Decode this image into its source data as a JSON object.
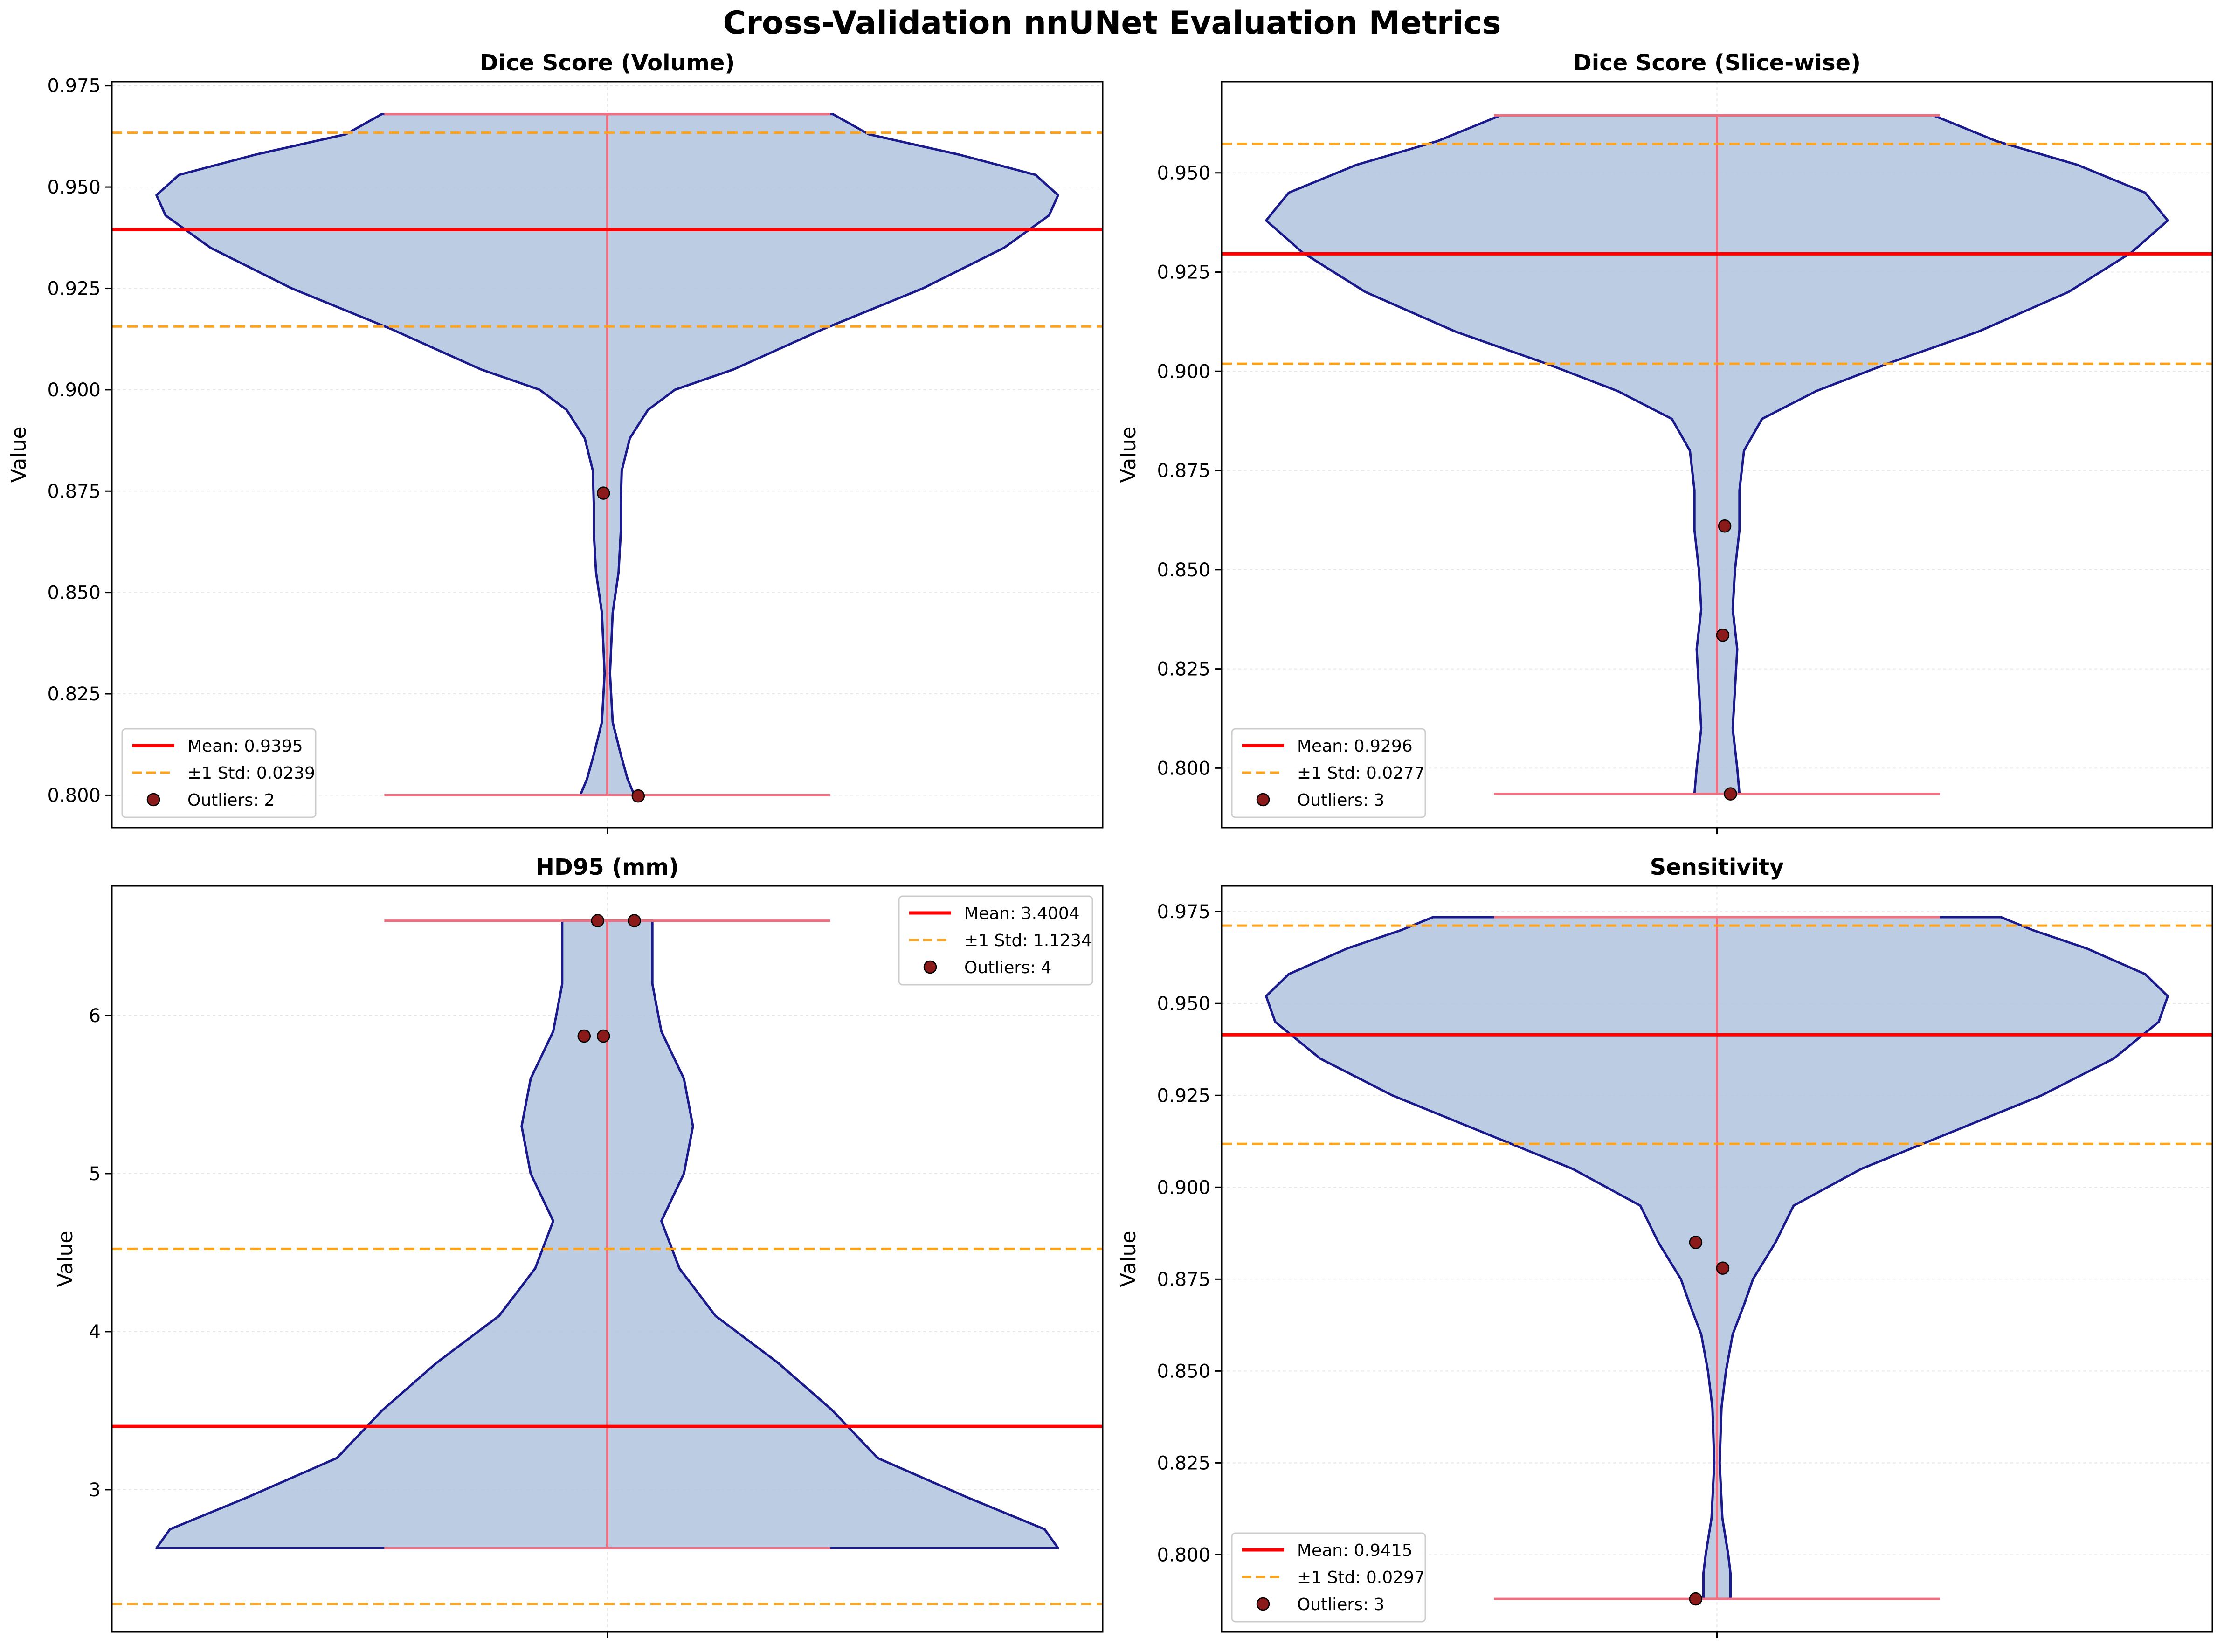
{
  "figure_title": "Cross-Validation nnUNet Evaluation Metrics",
  "colors": {
    "violin_fill": "#b0c4de",
    "violin_edge": "#1a1a8c",
    "median_line": "#f07080",
    "mean_line": "#ff0000",
    "std_line": "#ffa31a",
    "outlier_fill": "#8b1a1a",
    "grid": "#e6e6e6"
  },
  "chart_data": [
    {
      "type": "violin",
      "title": "Dice Score (Volume)",
      "ylabel": "Value",
      "ylim": [
        0.792,
        0.976
      ],
      "yticks": [
        0.8,
        0.825,
        0.85,
        0.875,
        0.9,
        0.925,
        0.95,
        0.975
      ],
      "ytick_labels": [
        "0.800",
        "0.825",
        "0.850",
        "0.875",
        "0.900",
        "0.925",
        "0.950",
        "0.975"
      ],
      "range": [
        0.8,
        0.968
      ],
      "violin_profile": [
        [
          0.8,
          0.06
        ],
        [
          0.804,
          0.045
        ],
        [
          0.81,
          0.03
        ],
        [
          0.818,
          0.012
        ],
        [
          0.83,
          0.006
        ],
        [
          0.845,
          0.012
        ],
        [
          0.855,
          0.025
        ],
        [
          0.865,
          0.03
        ],
        [
          0.872,
          0.03
        ],
        [
          0.88,
          0.032
        ],
        [
          0.888,
          0.05
        ],
        [
          0.895,
          0.09
        ],
        [
          0.9,
          0.15
        ],
        [
          0.905,
          0.28
        ],
        [
          0.915,
          0.48
        ],
        [
          0.925,
          0.7
        ],
        [
          0.935,
          0.88
        ],
        [
          0.943,
          0.98
        ],
        [
          0.948,
          1.0
        ],
        [
          0.953,
          0.95
        ],
        [
          0.958,
          0.78
        ],
        [
          0.963,
          0.58
        ],
        [
          0.968,
          0.5
        ]
      ],
      "mean": 0.9395,
      "std_band": [
        0.9156,
        0.9634
      ],
      "outliers": [
        {
          "x": -0.01,
          "y": 0.8745
        },
        {
          "x": 0.08,
          "y": 0.7998
        }
      ],
      "legend": {
        "placement": "lower left",
        "mean_label": "Mean: 0.9395",
        "std_label": "±1 Std: 0.0239",
        "outlier_label": "Outliers: 2"
      }
    },
    {
      "type": "violin",
      "title": "Dice Score (Slice-wise)",
      "ylabel": "Value",
      "ylim": [
        0.785,
        0.973
      ],
      "yticks": [
        0.8,
        0.825,
        0.85,
        0.875,
        0.9,
        0.925,
        0.95
      ],
      "ytick_labels": [
        "0.800",
        "0.825",
        "0.850",
        "0.875",
        "0.900",
        "0.925",
        "0.950"
      ],
      "range": [
        0.7935,
        0.9645
      ],
      "violin_profile": [
        [
          0.7935,
          0.05
        ],
        [
          0.8,
          0.045
        ],
        [
          0.81,
          0.035
        ],
        [
          0.82,
          0.04
        ],
        [
          0.83,
          0.045
        ],
        [
          0.84,
          0.035
        ],
        [
          0.85,
          0.04
        ],
        [
          0.86,
          0.05
        ],
        [
          0.87,
          0.05
        ],
        [
          0.88,
          0.06
        ],
        [
          0.888,
          0.1
        ],
        [
          0.895,
          0.22
        ],
        [
          0.902,
          0.38
        ],
        [
          0.91,
          0.58
        ],
        [
          0.92,
          0.78
        ],
        [
          0.93,
          0.92
        ],
        [
          0.938,
          1.0
        ],
        [
          0.945,
          0.95
        ],
        [
          0.952,
          0.8
        ],
        [
          0.958,
          0.62
        ],
        [
          0.9645,
          0.48
        ]
      ],
      "mean": 0.9296,
      "std_band": [
        0.9019,
        0.9573
      ],
      "outliers": [
        {
          "x": 0.02,
          "y": 0.861
        },
        {
          "x": 0.015,
          "y": 0.8335
        },
        {
          "x": 0.035,
          "y": 0.7935
        }
      ],
      "legend": {
        "placement": "lower left",
        "mean_label": "Mean: 0.9296",
        "std_label": "±1 Std: 0.0277",
        "outlier_label": "Outliers: 3"
      }
    },
    {
      "type": "violin",
      "title": "HD95 (mm)",
      "ylabel": "Value",
      "ylim": [
        2.1,
        6.82
      ],
      "yticks": [
        3,
        4,
        5,
        6
      ],
      "ytick_labels": [
        "3",
        "4",
        "5",
        "6"
      ],
      "range": [
        2.63,
        6.6
      ],
      "violin_profile": [
        [
          2.63,
          1.0
        ],
        [
          2.75,
          0.97
        ],
        [
          2.95,
          0.8
        ],
        [
          3.2,
          0.6
        ],
        [
          3.5,
          0.5
        ],
        [
          3.8,
          0.38
        ],
        [
          4.1,
          0.24
        ],
        [
          4.4,
          0.16
        ],
        [
          4.7,
          0.12
        ],
        [
          5.0,
          0.17
        ],
        [
          5.3,
          0.19
        ],
        [
          5.6,
          0.17
        ],
        [
          5.9,
          0.12
        ],
        [
          6.2,
          0.1
        ],
        [
          6.6,
          0.1
        ]
      ],
      "mean": 3.4004,
      "std_band": [
        2.277,
        4.5238
      ],
      "outliers": [
        {
          "x": -0.06,
          "y": 5.87
        },
        {
          "x": -0.01,
          "y": 5.87
        },
        {
          "x": -0.025,
          "y": 6.6
        },
        {
          "x": 0.07,
          "y": 6.6
        }
      ],
      "legend": {
        "placement": "upper right",
        "mean_label": "Mean: 3.4004",
        "std_label": "±1 Std: 1.1234",
        "outlier_label": "Outliers: 4"
      }
    },
    {
      "type": "violin",
      "title": "Sensitivity",
      "ylabel": "Value",
      "ylim": [
        0.779,
        0.982
      ],
      "yticks": [
        0.8,
        0.825,
        0.85,
        0.875,
        0.9,
        0.925,
        0.95,
        0.975
      ],
      "ytick_labels": [
        "0.800",
        "0.825",
        "0.850",
        "0.875",
        "0.900",
        "0.925",
        "0.950",
        "0.975"
      ],
      "range": [
        0.788,
        0.9735
      ],
      "violin_profile": [
        [
          0.788,
          0.03
        ],
        [
          0.795,
          0.03
        ],
        [
          0.8,
          0.025
        ],
        [
          0.81,
          0.012
        ],
        [
          0.825,
          0.006
        ],
        [
          0.84,
          0.01
        ],
        [
          0.85,
          0.02
        ],
        [
          0.86,
          0.035
        ],
        [
          0.868,
          0.06
        ],
        [
          0.875,
          0.08
        ],
        [
          0.885,
          0.13
        ],
        [
          0.895,
          0.17
        ],
        [
          0.905,
          0.32
        ],
        [
          0.915,
          0.52
        ],
        [
          0.925,
          0.72
        ],
        [
          0.935,
          0.88
        ],
        [
          0.945,
          0.98
        ],
        [
          0.952,
          1.0
        ],
        [
          0.958,
          0.95
        ],
        [
          0.965,
          0.82
        ],
        [
          0.97,
          0.7
        ],
        [
          0.9735,
          0.63
        ]
      ],
      "mean": 0.9415,
      "std_band": [
        0.9118,
        0.9712
      ],
      "outliers": [
        {
          "x": -0.055,
          "y": 0.885
        },
        {
          "x": 0.015,
          "y": 0.878
        },
        {
          "x": -0.055,
          "y": 0.788
        }
      ],
      "legend": {
        "placement": "lower left",
        "mean_label": "Mean: 0.9415",
        "std_label": "±1 Std: 0.0297",
        "outlier_label": "Outliers: 3"
      }
    }
  ]
}
